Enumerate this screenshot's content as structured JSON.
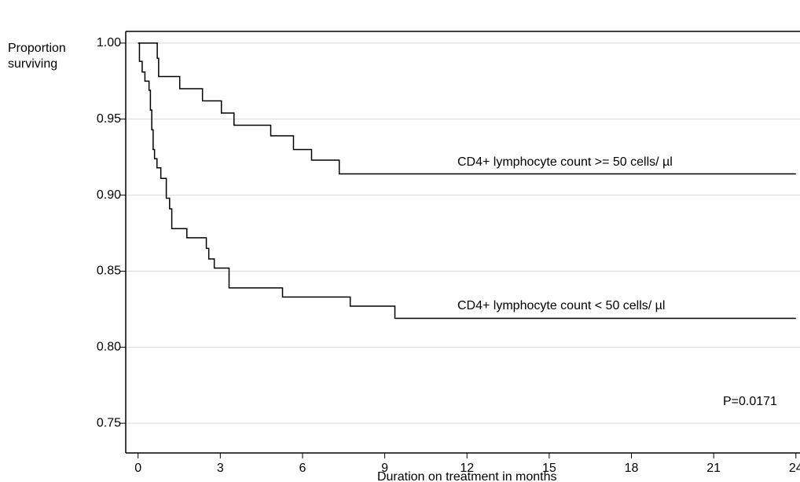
{
  "chart_data": {
    "type": "line",
    "drawstyle": "steps-post",
    "ylabel": "Proportion surviving",
    "xlabel": "Duration on treatment in months",
    "annotation": "P=0.0171",
    "xlim": [
      -0.45,
      24.15
    ],
    "ylim": [
      0.7356,
      1.0077
    ],
    "xticks": [
      0,
      3,
      6,
      9,
      12,
      15,
      18,
      21,
      24
    ],
    "yticks": [
      0.75,
      {
        "value": 0.8,
        "label": "0.80"
      },
      0.85,
      {
        "value": 0.9,
        "label": "0.90"
      },
      0.95,
      {
        "value": 1.0,
        "label": "1.00"
      }
    ],
    "grid": true,
    "series": [
      {
        "name": "CD4+ lymphocyte count >= 50 cells/   µl",
        "color": "#000000",
        "x": [
          0,
          0.7,
          0.75,
          1.52,
          2.35,
          3.04,
          3.5,
          4.84,
          5.67,
          6.33,
          7.34,
          24
        ],
        "values": [
          1.0,
          0.99,
          0.978,
          0.97,
          0.962,
          0.954,
          0.946,
          0.939,
          0.93,
          0.923,
          0.914,
          0.914
        ]
      },
      {
        "name": "CD4+ lymphocyte count < 50 cells/   µl",
        "color": "#000000",
        "x": [
          0,
          0.05,
          0.15,
          0.25,
          0.4,
          0.45,
          0.5,
          0.55,
          0.6,
          0.69,
          0.83,
          1.03,
          1.15,
          1.23,
          1.78,
          2.49,
          2.58,
          2.78,
          3.32,
          5.27,
          7.74,
          9.37,
          24
        ],
        "values": [
          1.0,
          0.988,
          0.981,
          0.975,
          0.969,
          0.956,
          0.943,
          0.93,
          0.924,
          0.918,
          0.911,
          0.898,
          0.891,
          0.878,
          0.872,
          0.865,
          0.858,
          0.852,
          0.839,
          0.833,
          0.827,
          0.819,
          0.819
        ]
      }
    ]
  }
}
